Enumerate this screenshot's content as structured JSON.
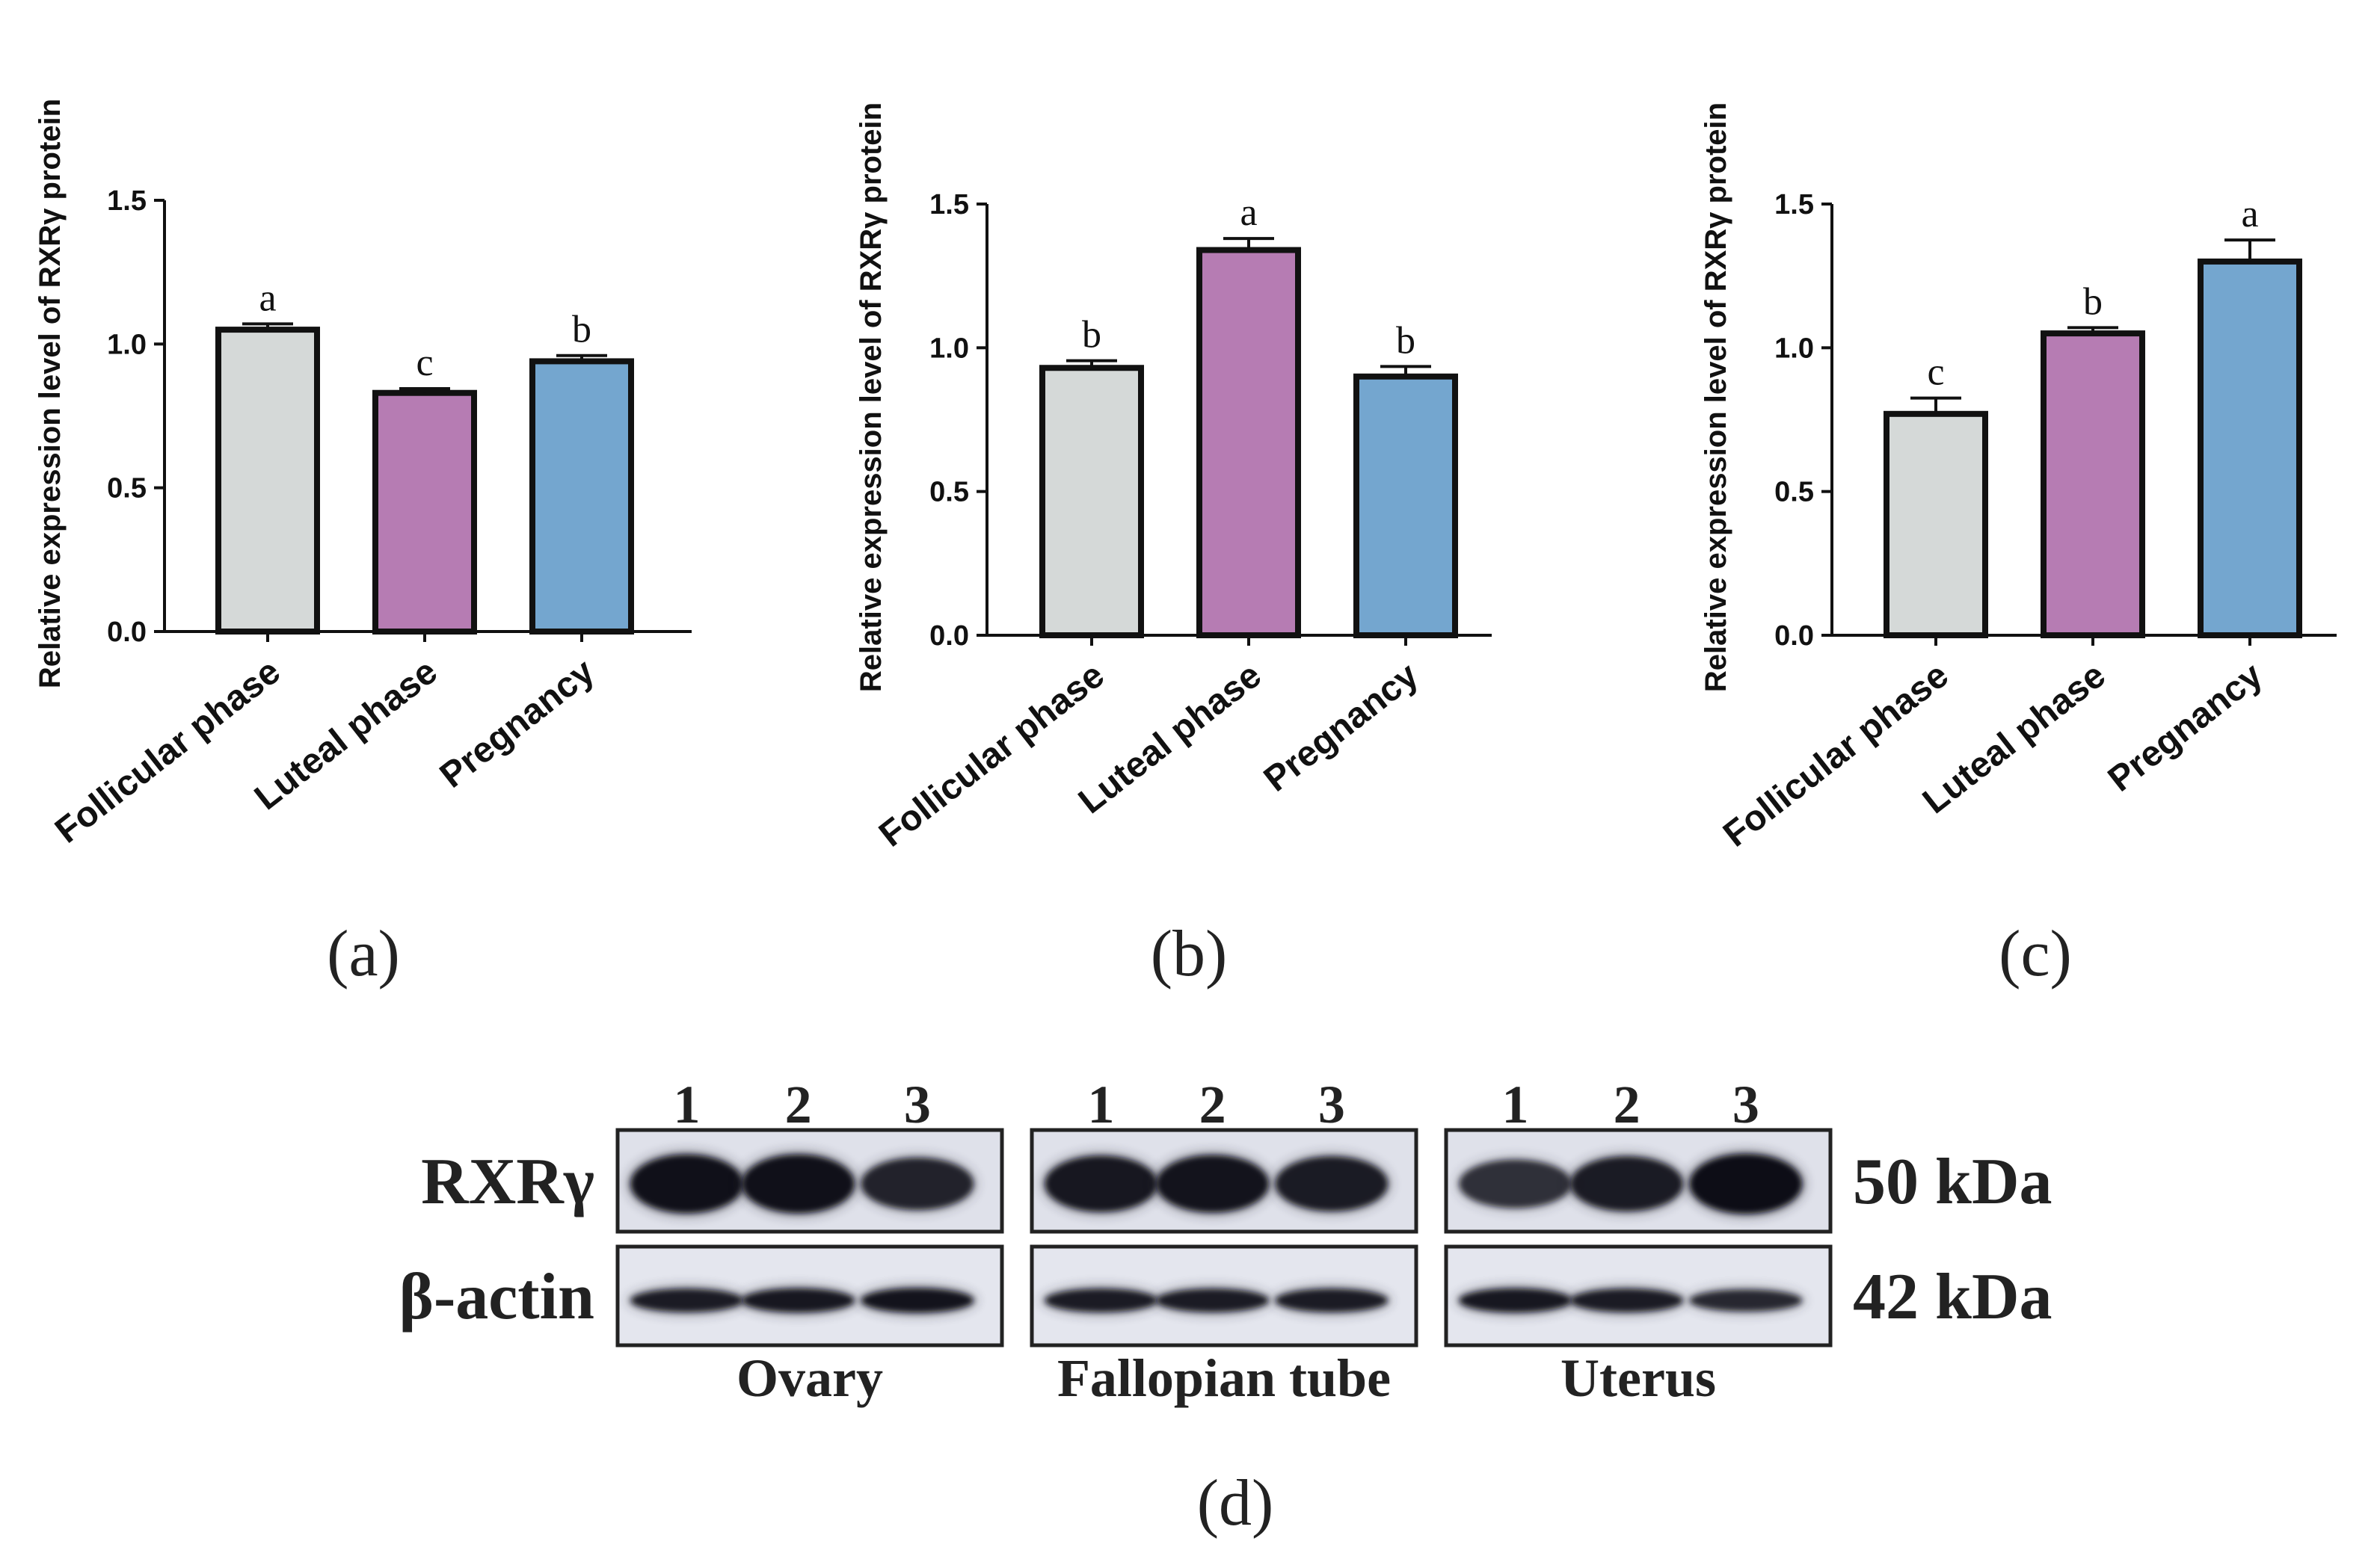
{
  "chart_data": [
    {
      "type": "bar",
      "panel": "(a)",
      "ylabel": "Relative expression level of RXRγ protein",
      "categories": [
        "Follicular phase",
        "Luteal phase",
        "Pregnancy"
      ],
      "values": [
        1.05,
        0.83,
        0.94
      ],
      "errors": [
        0.02,
        0.015,
        0.02
      ],
      "significance": [
        "a",
        "c",
        "b"
      ],
      "ylim": [
        0,
        1.5
      ],
      "yticks": [
        "0.0",
        "0.5",
        "1.0",
        "1.5"
      ],
      "colors": [
        "#d5d9d8",
        "#b67cb3",
        "#74a6cf"
      ]
    },
    {
      "type": "bar",
      "panel": "(b)",
      "ylabel": "Relative expression level of RXRγ protein",
      "categories": [
        "Follicular phase",
        "Luteal phase",
        "Pregnancy"
      ],
      "values": [
        0.93,
        1.34,
        0.9
      ],
      "errors": [
        0.025,
        0.04,
        0.035
      ],
      "significance": [
        "b",
        "a",
        "b"
      ],
      "ylim": [
        0,
        1.5
      ],
      "yticks": [
        "0.0",
        "0.5",
        "1.0",
        "1.5"
      ],
      "colors": [
        "#d5d9d8",
        "#b67cb3",
        "#74a6cf"
      ]
    },
    {
      "type": "bar",
      "panel": "(c)",
      "ylabel": "Relative expression level of RXRγ protein",
      "categories": [
        "Follicular phase",
        "Luteal phase",
        "Pregnancy"
      ],
      "values": [
        0.77,
        1.05,
        1.3
      ],
      "errors": [
        0.055,
        0.02,
        0.075
      ],
      "significance": [
        "c",
        "b",
        "a"
      ],
      "ylim": [
        0,
        1.5
      ],
      "yticks": [
        "0.0",
        "0.5",
        "1.0",
        "1.5"
      ],
      "colors": [
        "#d5d9d8",
        "#b67cb3",
        "#74a6cf"
      ]
    }
  ],
  "blot": {
    "panel": "(d)",
    "lane_numbers": [
      "1",
      "2",
      "3"
    ],
    "rows": [
      {
        "label": "RXRγ",
        "size": "50 kDa"
      },
      {
        "label": "β-actin",
        "size": "42 kDa"
      }
    ],
    "tissues": [
      "Ovary",
      "Fallopian tube",
      "Uterus"
    ],
    "band_intensity": {
      "RXRγ": [
        [
          0.95,
          0.95,
          0.7
        ],
        [
          0.85,
          0.9,
          0.8
        ],
        [
          0.55,
          0.8,
          1.0
        ]
      ],
      "β-actin": [
        [
          0.8,
          0.85,
          0.9
        ],
        [
          0.8,
          0.8,
          0.8
        ],
        [
          0.85,
          0.8,
          0.65
        ]
      ]
    }
  }
}
